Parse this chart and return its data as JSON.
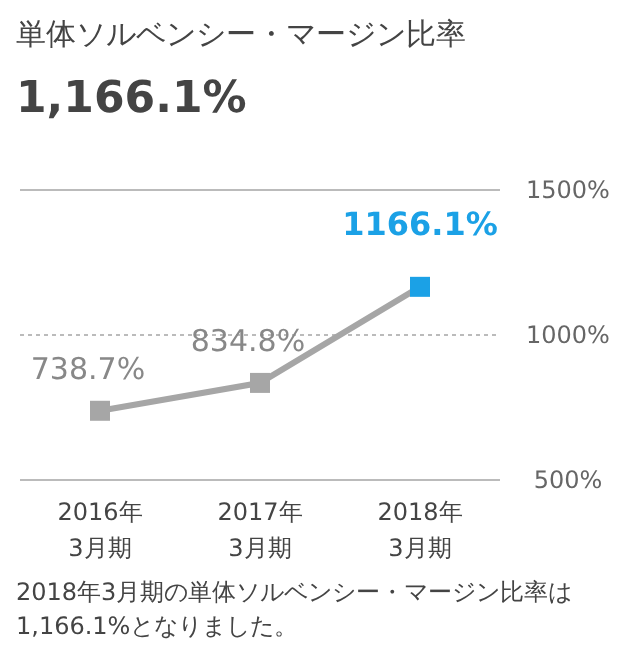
{
  "chart_data": {
    "type": "line",
    "title": "単体ソルベンシー・マージン比率",
    "subtitle": "1,166.1%",
    "categories": [
      "2016年3月期",
      "2017年3月期",
      "2018年3月期"
    ],
    "values": [
      738.7,
      834.8,
      1166.1
    ],
    "value_labels": [
      "738.7%",
      "834.8%",
      "1166.1%"
    ],
    "color": "#a6a6a6",
    "colors": [
      "#a6a6a6",
      "#a6a6a6",
      "#1ba1e6"
    ],
    "ylim": [
      500,
      1500
    ],
    "yticks": [
      {
        "value": 500,
        "label": "500%"
      },
      {
        "value": 1000,
        "label": "1000%"
      },
      {
        "value": 1500,
        "label": "1500%"
      }
    ],
    "grid": "y",
    "marker": "square",
    "line_style": "solid",
    "annotations": [
      "2018年3月期の単体ソルベンシー・マージン比率は1,166.1%となりました。"
    ]
  }
}
